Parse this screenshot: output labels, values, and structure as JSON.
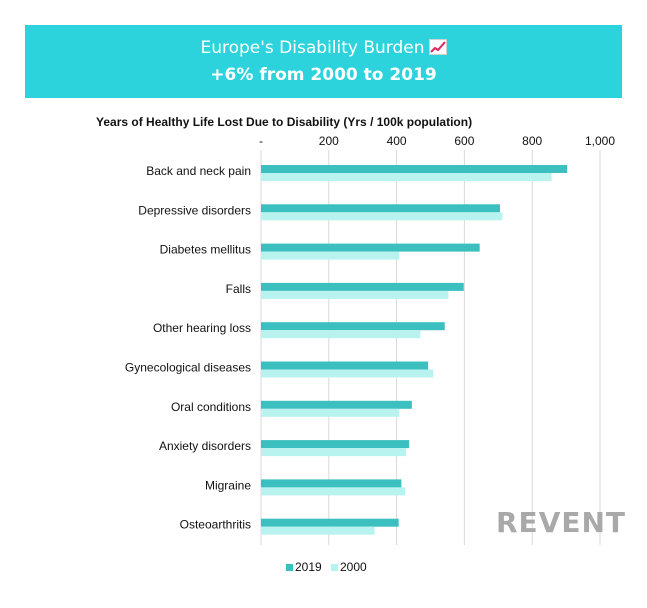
{
  "banner": {
    "title": "Europe's Disability Burden",
    "subtitle": "+6% from 2000 to 2019"
  },
  "icons": {
    "trend": "chart-increasing-icon"
  },
  "brand": "REVENT",
  "colors": {
    "banner": "#2dd3dc",
    "series_2019": "#3bbfbf",
    "series_2000": "#b9f3ef",
    "grid": "#d9d9d9"
  },
  "chart_data": {
    "type": "bar",
    "orientation": "horizontal",
    "title": "Years of Healthy Life Lost Due to Disability (Yrs / 100k population)",
    "categories": [
      "Back and neck pain",
      "Depressive disorders",
      "Diabetes mellitus",
      "Falls",
      "Other hearing loss",
      "Gynecological diseases",
      "Oral conditions",
      "Anxiety disorders",
      "Migraine",
      "Osteoarthritis"
    ],
    "series": [
      {
        "name": "2019",
        "values": [
          903,
          705,
          645,
          598,
          542,
          493,
          445,
          437,
          414,
          406
        ]
      },
      {
        "name": "2000",
        "values": [
          857,
          712,
          408,
          553,
          470,
          508,
          408,
          428,
          425,
          335
        ]
      }
    ],
    "xlim": [
      0,
      1000
    ],
    "xticks": [
      0,
      200,
      400,
      600,
      800,
      1000
    ],
    "xtick_labels": [
      "-",
      "200",
      "400",
      "600",
      "800",
      "1,000"
    ],
    "xaxis_position": "top",
    "grid": true,
    "legend": "bottom"
  }
}
